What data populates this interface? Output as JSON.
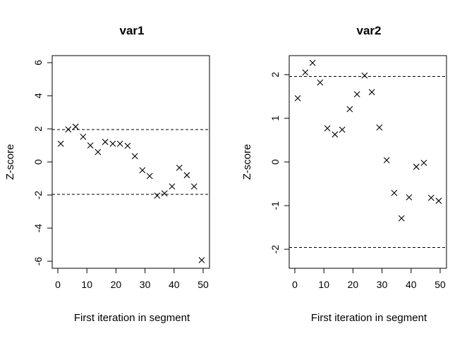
{
  "chart_data": [
    {
      "type": "scatter",
      "title": "var1",
      "xlabel": "First iteration in segment",
      "ylabel": "Z-score",
      "xlim": [
        0,
        50
      ],
      "ylim": [
        -6,
        6
      ],
      "x_ticks": [
        "0",
        "10",
        "20",
        "30",
        "40",
        "50"
      ],
      "y_ticks": [
        "-6",
        "-4",
        "-2",
        "0",
        "2",
        "4",
        "6"
      ],
      "reference_lines": [
        1.96,
        -1.96
      ],
      "marker": "x",
      "points": [
        {
          "x": 1,
          "y": 1.1
        },
        {
          "x": 3.6,
          "y": 1.97
        },
        {
          "x": 6.1,
          "y": 2.13
        },
        {
          "x": 8.7,
          "y": 1.52
        },
        {
          "x": 11.2,
          "y": 1.0
        },
        {
          "x": 13.8,
          "y": 0.6
        },
        {
          "x": 16.3,
          "y": 1.21
        },
        {
          "x": 18.9,
          "y": 1.1
        },
        {
          "x": 21.4,
          "y": 1.1
        },
        {
          "x": 24.0,
          "y": 0.98
        },
        {
          "x": 26.5,
          "y": 0.35
        },
        {
          "x": 29.1,
          "y": -0.5
        },
        {
          "x": 31.6,
          "y": -0.85
        },
        {
          "x": 34.2,
          "y": -2.03
        },
        {
          "x": 36.7,
          "y": -1.9
        },
        {
          "x": 39.3,
          "y": -1.48
        },
        {
          "x": 41.8,
          "y": -0.35
        },
        {
          "x": 44.4,
          "y": -0.8
        },
        {
          "x": 46.9,
          "y": -1.48
        },
        {
          "x": 49.5,
          "y": -5.93
        }
      ]
    },
    {
      "type": "scatter",
      "title": "var2",
      "xlabel": "First iteration in segment",
      "ylabel": "Z-score",
      "xlim": [
        0,
        50
      ],
      "ylim": [
        -2,
        2
      ],
      "x_ticks": [
        "0",
        "10",
        "20",
        "30",
        "40",
        "50"
      ],
      "y_ticks": [
        "-2",
        "-1",
        "0",
        "1",
        "2"
      ],
      "reference_lines": [
        1.96,
        -1.96
      ],
      "marker": "x",
      "points": [
        {
          "x": 1,
          "y": 1.46
        },
        {
          "x": 3.6,
          "y": 2.05
        },
        {
          "x": 6.1,
          "y": 2.27
        },
        {
          "x": 8.7,
          "y": 1.82
        },
        {
          "x": 11.2,
          "y": 0.77
        },
        {
          "x": 13.8,
          "y": 0.63
        },
        {
          "x": 16.3,
          "y": 0.74
        },
        {
          "x": 18.9,
          "y": 1.21
        },
        {
          "x": 21.4,
          "y": 1.55
        },
        {
          "x": 24.0,
          "y": 1.98
        },
        {
          "x": 26.5,
          "y": 1.6
        },
        {
          "x": 29.1,
          "y": 0.79
        },
        {
          "x": 31.6,
          "y": 0.04
        },
        {
          "x": 34.2,
          "y": -0.71
        },
        {
          "x": 36.7,
          "y": -1.29
        },
        {
          "x": 39.3,
          "y": -0.81
        },
        {
          "x": 41.8,
          "y": -0.11
        },
        {
          "x": 44.4,
          "y": -0.02
        },
        {
          "x": 46.9,
          "y": -0.82
        },
        {
          "x": 49.5,
          "y": -0.89
        }
      ]
    }
  ]
}
